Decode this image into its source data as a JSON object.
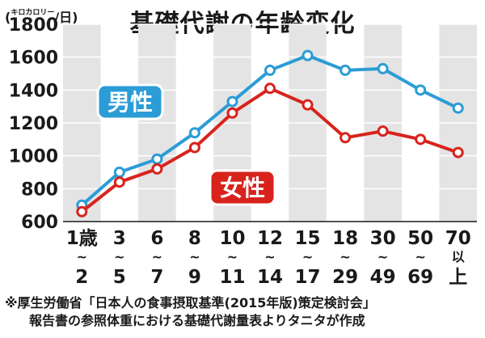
{
  "title": "基礎代謝の年齢変化",
  "unit": {
    "small": "キロカロリー",
    "prefix": "(",
    "suffix": "/日)"
  },
  "colors": {
    "male": "#2b9cd6",
    "female": "#d8231d",
    "band": "#e4e4e4",
    "grid": "#ffffff"
  },
  "chart_data": {
    "type": "line",
    "title": "基礎代謝の年齢変化",
    "ylabel": "(キロカロリー/日)",
    "xlabel": "",
    "ylim": [
      600,
      1800
    ],
    "yticks": [
      600,
      800,
      1000,
      1200,
      1400,
      1600,
      1800
    ],
    "grid": true,
    "categories": [
      "1歳~2",
      "3~5",
      "6~7",
      "8~9",
      "10~11",
      "12~14",
      "15~17",
      "18~29",
      "30~49",
      "50~69",
      "70以上"
    ],
    "category_lines": [
      [
        "1歳",
        "~",
        "2"
      ],
      [
        "3",
        "~",
        "5"
      ],
      [
        "6",
        "~",
        "7"
      ],
      [
        "8",
        "~",
        "9"
      ],
      [
        "10",
        "~",
        "11"
      ],
      [
        "12",
        "~",
        "14"
      ],
      [
        "15",
        "~",
        "17"
      ],
      [
        "18",
        "~",
        "29"
      ],
      [
        "30",
        "~",
        "49"
      ],
      [
        "50",
        "~",
        "69"
      ],
      [
        "70",
        "以",
        "上"
      ]
    ],
    "series": [
      {
        "name": "男性",
        "color": "#2b9cd6",
        "values": [
          700,
          900,
          980,
          1140,
          1330,
          1520,
          1610,
          1520,
          1530,
          1400,
          1290
        ]
      },
      {
        "name": "女性",
        "color": "#d8231d",
        "values": [
          660,
          840,
          920,
          1050,
          1260,
          1410,
          1310,
          1110,
          1150,
          1100,
          1020
        ]
      }
    ]
  },
  "note": {
    "line1": "※厚生労働省「日本人の食事摂取基準(2015年版)策定検討会」",
    "line2": "報告書の参照体重における基礎代謝量表よりタニタが作成"
  }
}
